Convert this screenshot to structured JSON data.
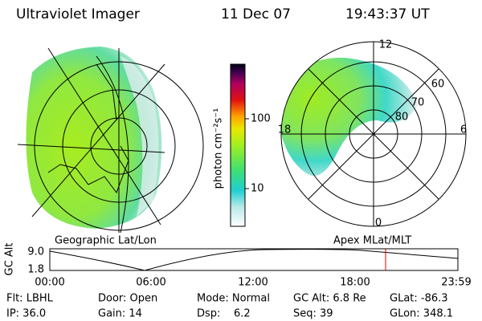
{
  "header": {
    "title": "Ultraviolet Imager",
    "date": "11 Dec 07",
    "time": "19:43:37 UT"
  },
  "left_panel": {
    "label": "Geographic Lat/Lon"
  },
  "colorbar": {
    "label": "photon cm⁻²s⁻¹",
    "ticks": [
      "100",
      "10"
    ]
  },
  "right_panel": {
    "label": "Apex MLat/MLT",
    "mlt_labels": [
      "12",
      "18",
      "6",
      "0"
    ],
    "mlat_labels": [
      "60",
      "70",
      "80"
    ]
  },
  "altitude_plot": {
    "axis_label": "GC Alt",
    "y_labels": [
      "9.0",
      "1.8"
    ],
    "x_labels": [
      "00:00",
      "06:00",
      "12:00",
      "18:00",
      "23:59"
    ]
  },
  "footer": {
    "rows": [
      [
        "Flt: LBHL",
        "Door: Open",
        "Mode: Normal",
        "GC Alt: 6.8 Re",
        "GLat: -86.3"
      ],
      [
        "IP: 36.0",
        "Gain: 14",
        "Dsp:    6.2",
        "Seq: 39",
        "GLon: 348.1"
      ]
    ]
  }
}
